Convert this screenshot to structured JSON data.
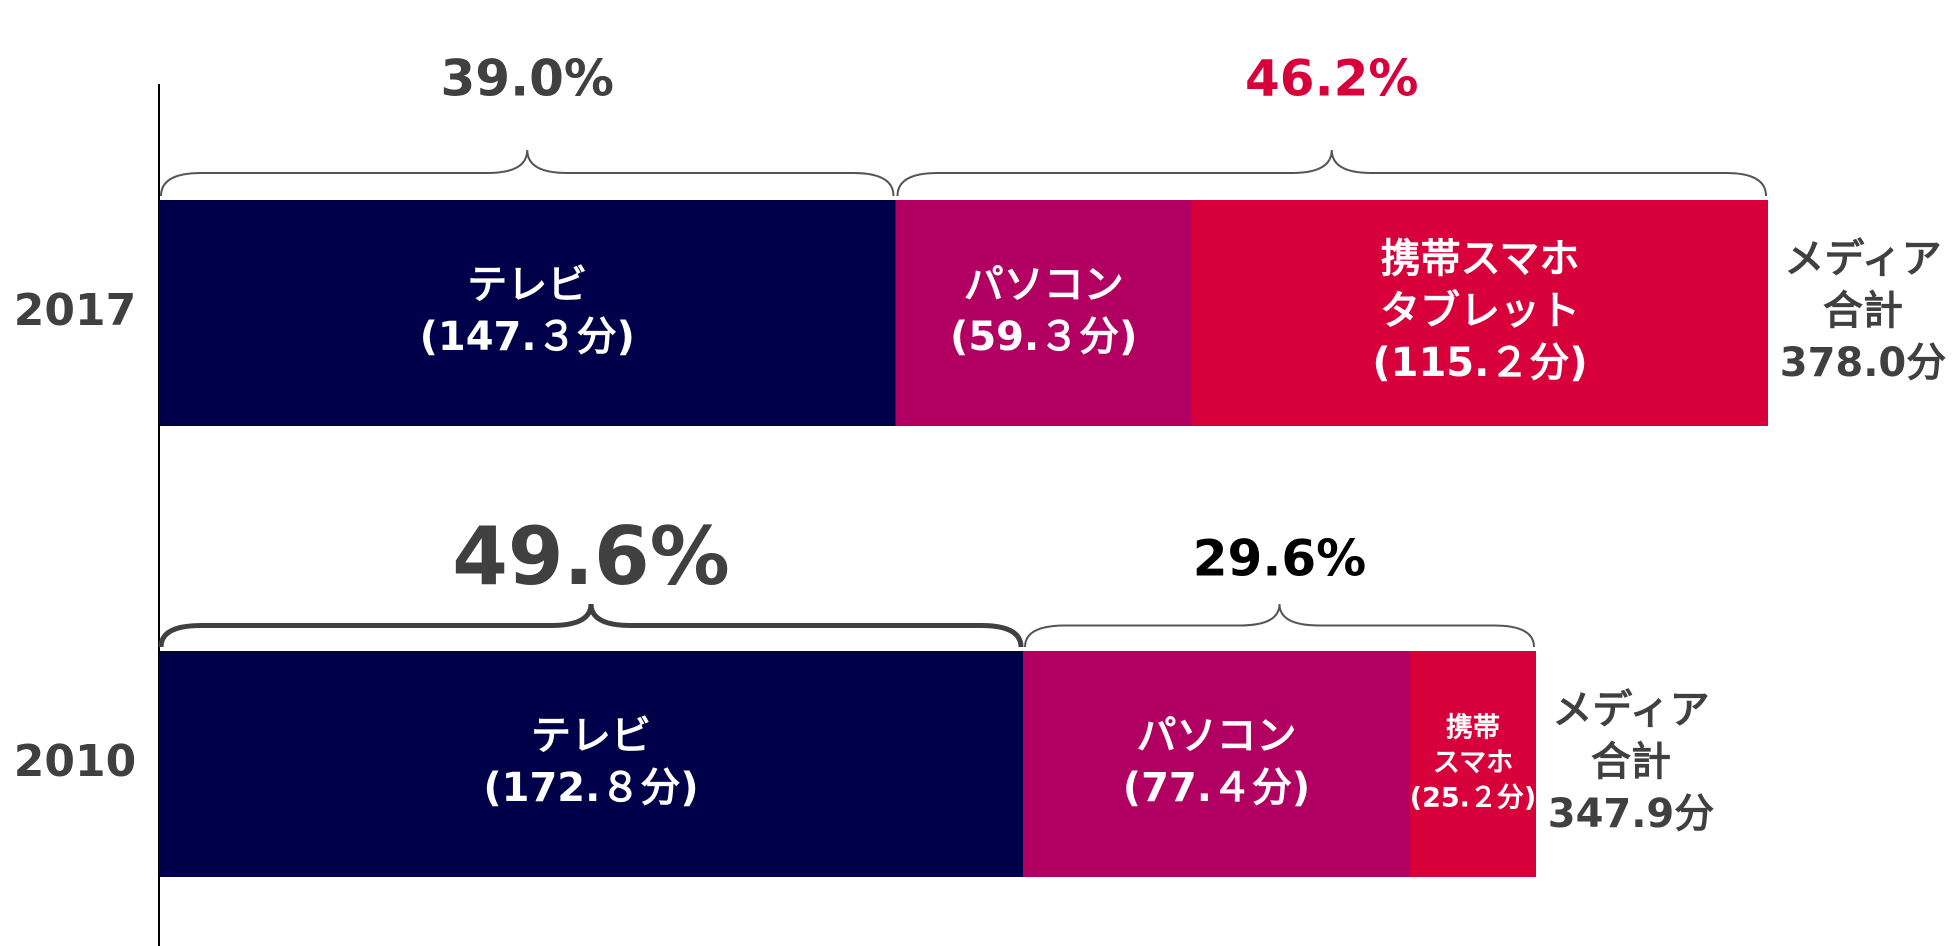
{
  "chart_data": {
    "type": "stacked-bar",
    "bars": [
      {
        "year": "2017",
        "total_label": [
          "メディア",
          "合計"
        ],
        "total": 378.0,
        "total_value_label": "378.0分",
        "segments": [
          {
            "name": [
              "テレビ"
            ],
            "value": 147.3,
            "value_label": "(147.３分)",
            "color": "#00004a"
          },
          {
            "name": [
              "パソコン"
            ],
            "value": 59.3,
            "value_label": "(59.３分)",
            "color": "#b20062"
          },
          {
            "name": [
              "携帯スマホ",
              "タブレット"
            ],
            "value": 115.2,
            "value_label": "(115.２分)",
            "color": "#d8003a"
          }
        ],
        "groups": [
          {
            "value": 39.0,
            "label": "39.0%",
            "color": "#404040"
          },
          {
            "value": 46.2,
            "label": "46.2%",
            "color": "#d8003a"
          }
        ]
      },
      {
        "year": "2010",
        "total_label": [
          "メディア",
          "合計"
        ],
        "total": 347.9,
        "total_value_label": "347.9分",
        "segments": [
          {
            "name": [
              "テレビ"
            ],
            "value": 172.8,
            "value_label": "(172.８分)",
            "color": "#00004a"
          },
          {
            "name": [
              "パソコン"
            ],
            "value": 77.4,
            "value_label": "(77.４分)",
            "color": "#b20062"
          },
          {
            "name": [
              "携帯",
              "スマホ"
            ],
            "value": 25.2,
            "value_label": "(25.２分)",
            "color": "#d8003a"
          }
        ],
        "groups": [
          {
            "value": 49.6,
            "label": "49.6%",
            "color": "#404040"
          },
          {
            "value": 29.6,
            "label": "29.6%",
            "color": "#000000"
          }
        ]
      }
    ]
  }
}
